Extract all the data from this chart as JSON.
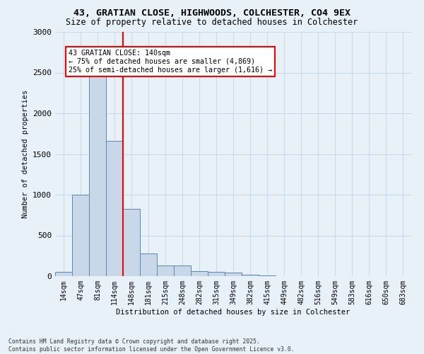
{
  "title_line1": "43, GRATIAN CLOSE, HIGHWOODS, COLCHESTER, CO4 9EX",
  "title_line2": "Size of property relative to detached houses in Colchester",
  "xlabel": "Distribution of detached houses by size in Colchester",
  "ylabel": "Number of detached properties",
  "bar_labels": [
    "14sqm",
    "47sqm",
    "81sqm",
    "114sqm",
    "148sqm",
    "181sqm",
    "215sqm",
    "248sqm",
    "282sqm",
    "315sqm",
    "349sqm",
    "382sqm",
    "415sqm",
    "449sqm",
    "482sqm",
    "516sqm",
    "549sqm",
    "583sqm",
    "616sqm",
    "650sqm",
    "683sqm"
  ],
  "bar_values": [
    50,
    1000,
    2480,
    1660,
    830,
    280,
    130,
    130,
    60,
    55,
    45,
    20,
    5,
    0,
    0,
    0,
    0,
    0,
    0,
    0,
    0
  ],
  "bar_color": "#c8d8e8",
  "bar_edge_color": "#5588bb",
  "vline_x": 3.5,
  "vline_color": "red",
  "annotation_text": "43 GRATIAN CLOSE: 140sqm\n← 75% of detached houses are smaller (4,869)\n25% of semi-detached houses are larger (1,616) →",
  "annotation_box_color": "white",
  "annotation_box_edge": "red",
  "ylim": [
    0,
    3000
  ],
  "yticks": [
    0,
    500,
    1000,
    1500,
    2000,
    2500,
    3000
  ],
  "grid_color": "#c8d8e8",
  "background_color": "#e8f0f8",
  "footnote": "Contains HM Land Registry data © Crown copyright and database right 2025.\nContains public sector information licensed under the Open Government Licence v3.0."
}
